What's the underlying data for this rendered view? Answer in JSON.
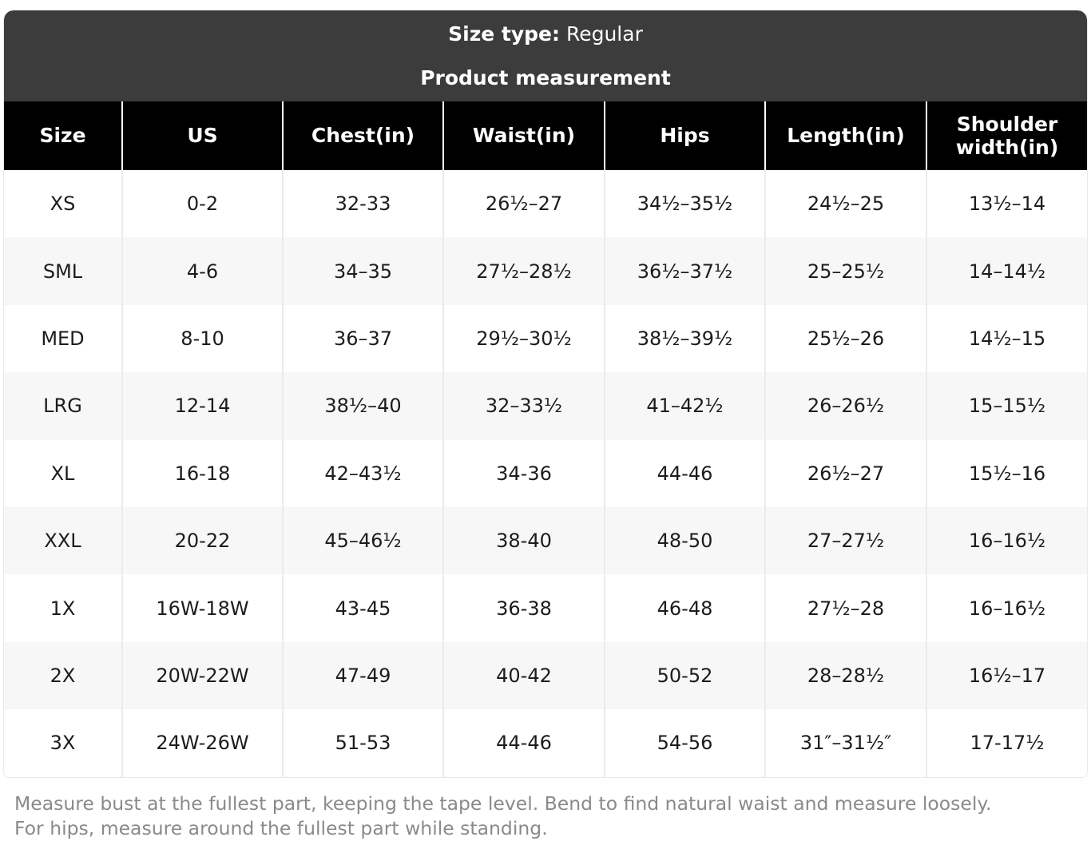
{
  "banner": {
    "size_type_label": "Size type:",
    "size_type_value": " Regular",
    "subtitle": "Product measurement"
  },
  "table": {
    "columns": [
      "Size",
      "US",
      "Chest(in)",
      "Waist(in)",
      "Hips",
      "Length(in)",
      "Shoulder width(in)"
    ],
    "rows": [
      [
        "XS",
        "0-2",
        "32-33",
        "26½–27",
        "34½–35½",
        "24½–25",
        "13½–14"
      ],
      [
        "SML",
        "4-6",
        "34–35",
        "27½–28½",
        "36½–37½",
        "25–25½",
        "14–14½"
      ],
      [
        "MED",
        "8-10",
        "36–37",
        "29½–30½",
        "38½–39½",
        "25½–26",
        "14½–15"
      ],
      [
        "LRG",
        "12-14",
        "38½–40",
        "32–33½",
        "41–42½",
        "26–26½",
        "15–15½"
      ],
      [
        "XL",
        "16-18",
        "42–43½",
        "34-36",
        "44-46",
        "26½–27",
        "15½–16"
      ],
      [
        "XXL",
        "20-22",
        "45–46½",
        "38-40",
        "48-50",
        "27–27½",
        "16–16½"
      ],
      [
        "1X",
        "16W-18W",
        "43-45",
        "36-38",
        "46-48",
        "27½–28",
        "16–16½"
      ],
      [
        "2X",
        "20W-22W",
        "47-49",
        "40-42",
        "50-52",
        "28–28½",
        "16½–17"
      ],
      [
        "3X",
        "24W-26W",
        "51-53",
        "44-46",
        "54-56",
        "31″–31½″",
        "17-17½"
      ]
    ]
  },
  "footer": {
    "note": "Measure bust at the fullest part, keeping the tape level. Bend to find natural waist and measure loosely. For hips, measure around the fullest part while standing."
  },
  "colors": {
    "banner_bg": "#3c3c3c",
    "header_bg": "#000000",
    "header_text": "#ffffff",
    "stripe_bg": "#f7f7f7",
    "body_text": "#1c1c1c",
    "footer_text": "#8a8a8a"
  }
}
